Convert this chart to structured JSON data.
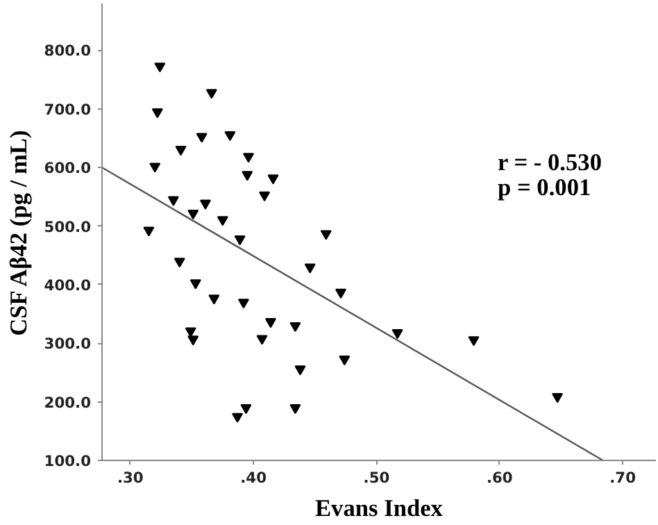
{
  "chart_data": {
    "type": "scatter",
    "xlabel": "Evans Index",
    "ylabel": "CSF Aβ42 (pg / mL)",
    "xlim": [
      0.277,
      0.727
    ],
    "ylim": [
      100,
      880
    ],
    "xticks": [
      {
        "value": 0.3,
        "label": ".30"
      },
      {
        "value": 0.4,
        "label": ".40"
      },
      {
        "value": 0.5,
        "label": ".50"
      },
      {
        "value": 0.6,
        "label": ".60"
      },
      {
        "value": 0.7,
        "label": ".70"
      }
    ],
    "yticks": [
      {
        "value": 100,
        "label": "100.0"
      },
      {
        "value": 200,
        "label": "200.0"
      },
      {
        "value": 300,
        "label": "300.0"
      },
      {
        "value": 400,
        "label": "400.0"
      },
      {
        "value": 500,
        "label": "500.0"
      },
      {
        "value": 600,
        "label": "600.0"
      },
      {
        "value": 700,
        "label": "700.0"
      },
      {
        "value": 800,
        "label": "800.0"
      }
    ],
    "grid": false,
    "annotations": [
      "r = - 0.530",
      "p = 0.001"
    ],
    "series": [
      {
        "marker": "triangle",
        "color": "#000000",
        "x": [
          0.324,
          0.366,
          0.322,
          0.358,
          0.381,
          0.341,
          0.396,
          0.32,
          0.395,
          0.416,
          0.409,
          0.335,
          0.361,
          0.351,
          0.375,
          0.315,
          0.389,
          0.459,
          0.446,
          0.34,
          0.353,
          0.471,
          0.368,
          0.392,
          0.414,
          0.434,
          0.349,
          0.517,
          0.351,
          0.407,
          0.579,
          0.474,
          0.438,
          0.647,
          0.394,
          0.434,
          0.387
        ],
        "values": [
          773,
          728,
          695,
          653,
          656,
          631,
          619,
          602,
          588,
          582,
          553,
          545,
          539,
          522,
          511,
          493,
          478,
          487,
          430,
          440,
          403,
          387,
          377,
          370,
          337,
          330,
          321,
          318,
          307,
          308,
          306,
          273,
          256,
          209,
          190,
          190,
          175
        ]
      },
      {
        "type": "line",
        "color": "#555555",
        "x": [
          0.277,
          0.684
        ],
        "values": [
          600,
          100
        ]
      }
    ]
  }
}
